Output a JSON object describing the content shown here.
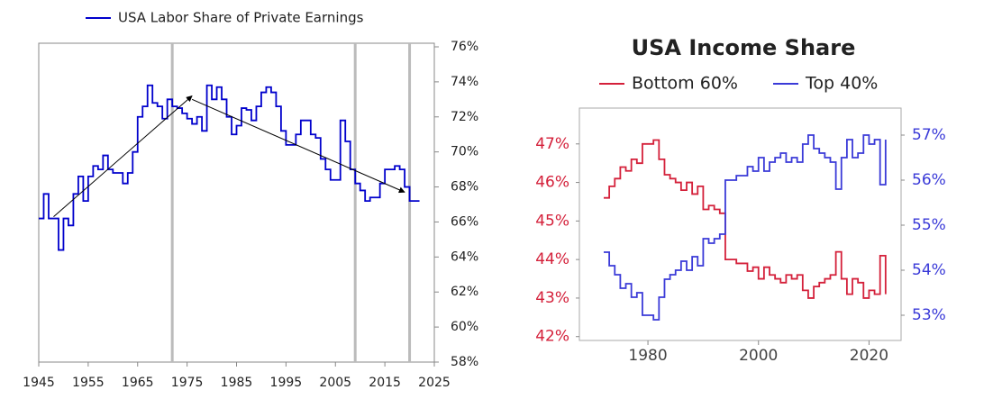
{
  "chart_data": [
    {
      "type": "line",
      "step": "post",
      "x": [
        1945,
        1946,
        1947,
        1948,
        1949,
        1950,
        1951,
        1952,
        1953,
        1954,
        1955,
        1956,
        1957,
        1958,
        1959,
        1960,
        1961,
        1962,
        1963,
        1964,
        1965,
        1966,
        1967,
        1968,
        1969,
        1970,
        1971,
        1972,
        1973,
        1974,
        1975,
        1976,
        1977,
        1978,
        1979,
        1980,
        1981,
        1982,
        1983,
        1984,
        1985,
        1986,
        1987,
        1988,
        1989,
        1990,
        1991,
        1992,
        1993,
        1994,
        1995,
        1996,
        1997,
        1998,
        1999,
        2000,
        2001,
        2002,
        2003,
        2004,
        2005,
        2006,
        2007,
        2008,
        2009,
        2010,
        2011,
        2012,
        2013,
        2014,
        2015,
        2016,
        2017,
        2018,
        2019,
        2020,
        2021,
        2022
      ],
      "series": [
        {
          "name": "USA Labor Share of Private Earnings",
          "color": "#0000cc",
          "values": [
            66.2,
            67.6,
            66.2,
            66.2,
            64.4,
            66.2,
            65.8,
            67.6,
            68.6,
            67.2,
            68.6,
            69.2,
            69.0,
            69.8,
            69.0,
            68.8,
            68.8,
            68.2,
            68.8,
            70.0,
            72.0,
            72.6,
            73.8,
            72.8,
            72.6,
            71.9,
            73.0,
            72.6,
            72.5,
            72.2,
            71.9,
            71.6,
            72.0,
            71.2,
            73.8,
            73.0,
            73.7,
            73.0,
            72.0,
            71.0,
            71.5,
            72.5,
            72.4,
            71.8,
            72.6,
            73.4,
            73.7,
            73.4,
            72.6,
            71.2,
            70.4,
            70.4,
            71.0,
            71.8,
            71.8,
            71.0,
            70.8,
            69.6,
            69.0,
            68.4,
            68.4,
            71.8,
            70.6,
            69.0,
            68.2,
            67.8,
            67.2,
            67.4,
            67.4,
            68.2,
            69.0,
            69.0,
            69.2,
            69.0,
            68.0,
            67.2,
            67.2,
            67.2
          ]
        }
      ],
      "xlim": [
        1945,
        2025
      ],
      "xticks": [
        1945,
        1955,
        1965,
        1975,
        1985,
        1995,
        2005,
        2015,
        2025
      ],
      "ylim": [
        58,
        76
      ],
      "yticks": [
        {
          "value": 58,
          "label": "58%"
        },
        {
          "value": 60,
          "label": "60%"
        },
        {
          "value": 62,
          "label": "62%"
        },
        {
          "value": 64,
          "label": "64%"
        },
        {
          "value": 66,
          "label": "66%"
        },
        {
          "value": 68,
          "label": "68%"
        },
        {
          "value": 70,
          "label": "70%"
        },
        {
          "value": 72,
          "label": "72%"
        },
        {
          "value": 74,
          "label": "74%"
        },
        {
          "value": 76,
          "label": "76%"
        }
      ],
      "vlines": [
        1972,
        2009,
        2020
      ],
      "arrows": [
        {
          "x": [
            1948,
            1976
          ],
          "y": [
            66.3,
            73.2
          ]
        },
        {
          "x": [
            1976,
            2019
          ],
          "y": [
            73.0,
            67.7
          ]
        }
      ]
    },
    {
      "type": "line",
      "step": "post",
      "title": "USA Income Share",
      "x": [
        1972,
        1973,
        1974,
        1975,
        1976,
        1977,
        1978,
        1979,
        1980,
        1981,
        1982,
        1983,
        1984,
        1985,
        1986,
        1987,
        1988,
        1989,
        1990,
        1991,
        1992,
        1993,
        1994,
        1995,
        1996,
        1997,
        1998,
        1999,
        2000,
        2001,
        2002,
        2003,
        2004,
        2005,
        2006,
        2007,
        2008,
        2009,
        2010,
        2011,
        2012,
        2013,
        2014,
        2015,
        2016,
        2017,
        2018,
        2019,
        2020,
        2021,
        2022,
        2023
      ],
      "series": [
        {
          "name": "Bottom 60%",
          "color": "#d4203a",
          "values": [
            45.6,
            45.9,
            46.1,
            46.4,
            46.3,
            46.6,
            46.5,
            47.0,
            47.0,
            47.1,
            46.6,
            46.2,
            46.1,
            46.0,
            45.8,
            46.0,
            45.7,
            45.9,
            45.3,
            45.4,
            45.3,
            45.2,
            44.0,
            44.0,
            43.9,
            43.9,
            43.7,
            43.8,
            43.5,
            43.8,
            43.6,
            43.5,
            43.4,
            43.6,
            43.5,
            43.6,
            43.2,
            43.0,
            43.3,
            43.4,
            43.5,
            43.6,
            44.2,
            43.5,
            43.1,
            43.5,
            43.4,
            43.0,
            43.2,
            43.1,
            44.1,
            43.1
          ]
        },
        {
          "name": "Top 40%",
          "color": "#3a3ad8",
          "axis": "y2",
          "values": [
            54.4,
            54.1,
            53.9,
            53.6,
            53.7,
            53.4,
            53.5,
            53.0,
            53.0,
            52.9,
            53.4,
            53.8,
            53.9,
            54.0,
            54.2,
            54.0,
            54.3,
            54.1,
            54.7,
            54.6,
            54.7,
            54.8,
            56.0,
            56.0,
            56.1,
            56.1,
            56.3,
            56.2,
            56.5,
            56.2,
            56.4,
            56.5,
            56.6,
            56.4,
            56.5,
            56.4,
            56.8,
            57.0,
            56.7,
            56.6,
            56.5,
            56.4,
            55.8,
            56.5,
            56.9,
            56.5,
            56.6,
            57.0,
            56.8,
            56.9,
            55.9,
            56.9
          ]
        }
      ],
      "xlim": [
        1967.6,
        2025.8
      ],
      "xticks": [
        1980,
        2000,
        2020
      ],
      "ylim": [
        41.9,
        47.93
      ],
      "yticks": [
        {
          "value": 42,
          "label": "42%"
        },
        {
          "value": 43,
          "label": "43%"
        },
        {
          "value": 44,
          "label": "44%"
        },
        {
          "value": 45,
          "label": "45%"
        },
        {
          "value": 46,
          "label": "46%"
        },
        {
          "value": 47,
          "label": "47%"
        }
      ],
      "y2lim": [
        52.44,
        57.6
      ],
      "y2ticks": [
        {
          "value": 53,
          "label": "53%"
        },
        {
          "value": 54,
          "label": "54%"
        },
        {
          "value": 55,
          "label": "55%"
        },
        {
          "value": 56,
          "label": "56%"
        },
        {
          "value": 57,
          "label": "57%"
        }
      ]
    }
  ]
}
